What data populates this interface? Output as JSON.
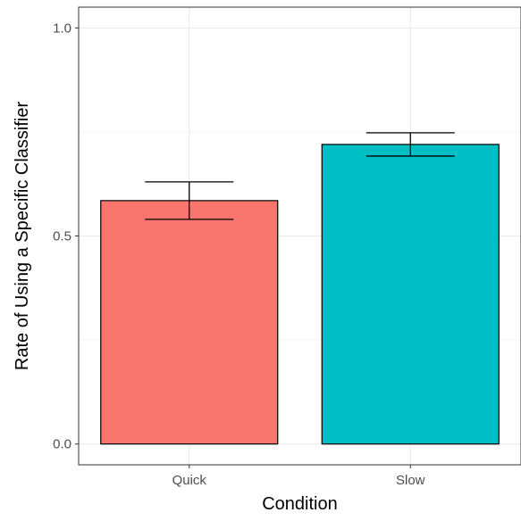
{
  "chart_data": {
    "type": "bar",
    "title": "",
    "xlabel": "Condition",
    "ylabel": "Rate of Using a Specific Classifier",
    "categories": [
      "Quick",
      "Slow"
    ],
    "values": [
      0.585,
      0.72
    ],
    "error_bars": [
      {
        "low": 0.54,
        "high": 0.63
      },
      {
        "low": 0.692,
        "high": 0.748
      }
    ],
    "colors": [
      "#F8766D",
      "#00BFC4"
    ],
    "ylim": [
      -0.05,
      1.05
    ],
    "yticks": [
      0.0,
      0.5,
      1.0
    ],
    "ytick_labels": [
      "0.0",
      "0.5",
      "1.0"
    ],
    "grid": true,
    "legend": "none"
  }
}
